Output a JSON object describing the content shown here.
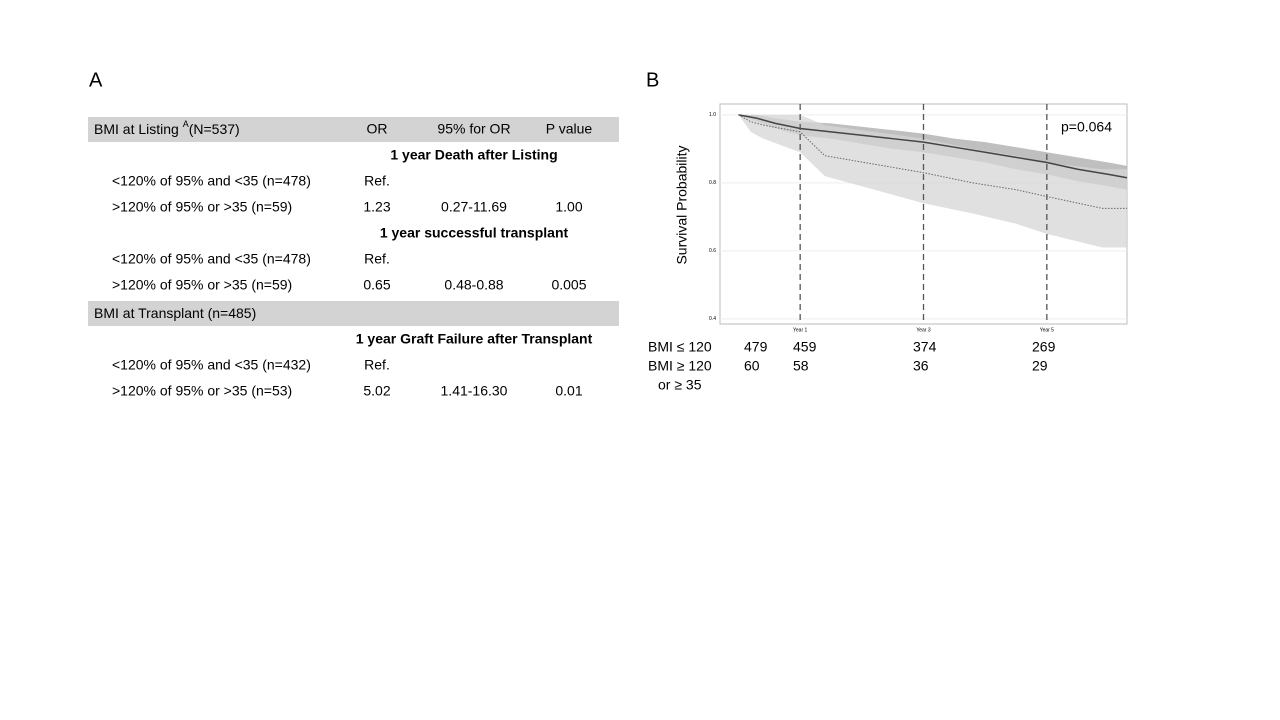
{
  "panel_a": {
    "label": "A",
    "groups": [
      {
        "title": "BMI at Listing ",
        "sup": "A",
        "count": "(N=537)",
        "columns": [
          "OR",
          "95% for OR",
          "P value"
        ],
        "sections": [
          {
            "title": "1 year Death after Listing",
            "rows": [
              {
                "label": "<120% of 95% and <35 (n=478)",
                "or": "Ref."
              },
              {
                "label": ">120% of 95% or >35 (n=59)",
                "or": "1.23",
                "ci": "0.27-11.69",
                "p": "1.00"
              }
            ]
          },
          {
            "title": "1 year successful transplant",
            "rows": [
              {
                "label": "<120% of 95% and <35 (n=478)",
                "or": "Ref."
              },
              {
                "label": ">120% of 95% or >35 (n=59)",
                "or": "0.65",
                "ci": "0.48-0.88",
                "p": "0.005"
              }
            ]
          }
        ]
      },
      {
        "title": "BMI at Transplant (n=485)",
        "sections": [
          {
            "title": "1 year Graft Failure after Transplant",
            "rows": [
              {
                "label": "<120% of 95% and <35 (n=432)",
                "or": "Ref."
              },
              {
                "label": ">120% of 95% or >35 (n=53)",
                "or": "5.02",
                "ci": "1.41-16.30",
                "p": "0.01"
              }
            ]
          }
        ]
      }
    ]
  },
  "panel_b": {
    "label": "B",
    "at_risk": [
      {
        "label_lines": [
          "BMI ≤ 120"
        ],
        "counts": [
          479,
          459,
          374,
          269
        ]
      },
      {
        "label_lines": [
          "BMI ≥ 120",
          "or ≥ 35"
        ],
        "counts": [
          60,
          58,
          36,
          29
        ]
      }
    ]
  },
  "chart_data": {
    "type": "line",
    "ylabel": "Survival Probability",
    "annotation": "p=0.064",
    "xlim": [
      -0.3,
      6.3
    ],
    "ylim": [
      0.385,
      1.032
    ],
    "xticks": [
      {
        "value": 1,
        "label": "Year 1"
      },
      {
        "value": 3,
        "label": "Year 3"
      },
      {
        "value": 5,
        "label": "Year 5"
      }
    ],
    "yticks": [
      0.4,
      0.6,
      0.8,
      {
        "value": 1,
        "label": "1.0"
      }
    ],
    "grid": true,
    "series": [
      {
        "color": "#444444",
        "band_color": "#a9a9a9",
        "style": "solid",
        "x": [
          0,
          0.3,
          0.6,
          1,
          1.5,
          2,
          2.5,
          3,
          3.5,
          4,
          4.5,
          5,
          5.5,
          6,
          6.3
        ],
        "values": [
          1,
          0.99,
          0.975,
          0.96,
          0.95,
          0.94,
          0.93,
          0.92,
          0.905,
          0.89,
          0.875,
          0.86,
          0.84,
          0.825,
          0.815
        ],
        "upper": [
          1,
          1,
          0.99,
          0.98,
          0.975,
          0.965,
          0.955,
          0.945,
          0.93,
          0.92,
          0.905,
          0.89,
          0.875,
          0.86,
          0.85
        ],
        "lower": [
          1,
          0.98,
          0.96,
          0.94,
          0.93,
          0.915,
          0.9,
          0.89,
          0.875,
          0.86,
          0.84,
          0.825,
          0.805,
          0.79,
          0.78
        ]
      },
      {
        "color": "#666666",
        "band_color": "#d6d6d6",
        "style": "dotted",
        "x": [
          0,
          0.2,
          0.4,
          1,
          1.4,
          3,
          3.8,
          4.5,
          5,
          5.9,
          6.3
        ],
        "values": [
          1,
          0.98,
          0.97,
          0.95,
          0.88,
          0.83,
          0.8,
          0.78,
          0.76,
          0.725,
          0.725
        ],
        "upper": [
          1,
          1,
          1,
          1,
          0.97,
          0.93,
          0.9,
          0.88,
          0.86,
          0.84,
          0.84
        ],
        "lower": [
          1,
          0.95,
          0.93,
          0.89,
          0.82,
          0.74,
          0.71,
          0.68,
          0.65,
          0.61,
          0.61
        ]
      }
    ]
  }
}
